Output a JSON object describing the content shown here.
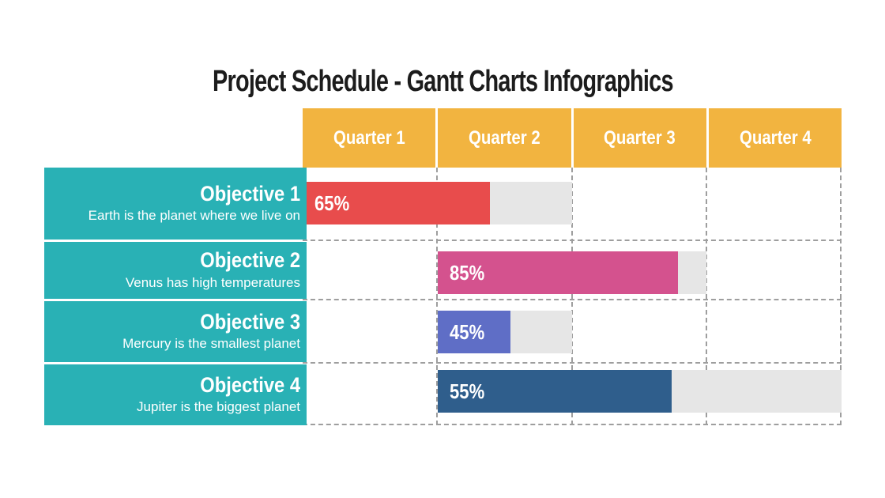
{
  "slide": {
    "title": "Project Schedule - Gantt Charts Infographics"
  },
  "colors": {
    "title_text": "#1c1c1c",
    "quarter_header_bg": "#f2b440",
    "objective_box_bg": "#29b1b5",
    "track_bg": "#e6e6e6",
    "grid_dash": "#9e9e9e"
  },
  "quarters": [
    {
      "label": "Quarter 1"
    },
    {
      "label": "Quarter 2"
    },
    {
      "label": "Quarter 3"
    },
    {
      "label": "Quarter 4"
    }
  ],
  "rows": [
    {
      "objective": "Objective 1",
      "description": "Earth is the planet where we live on",
      "percent": "65%",
      "bar_color": "#e84c4c"
    },
    {
      "objective": "Objective 2",
      "description": "Venus has high temperatures",
      "percent": "85%",
      "bar_color": "#d4528e"
    },
    {
      "objective": "Objective 3",
      "description": "Mercury is the smallest planet",
      "percent": "45%",
      "bar_color": "#5f6ec6"
    },
    {
      "objective": "Objective 4",
      "description": "Jupiter is the biggest planet",
      "percent": "55%",
      "bar_color": "#2f5e8c"
    }
  ],
  "chart_data": {
    "type": "bar",
    "orientation": "horizontal",
    "title": "Project Schedule - Gantt Charts Infographics",
    "categories": [
      "Objective 1",
      "Objective 2",
      "Objective 3",
      "Objective 4"
    ],
    "category_descriptions": [
      "Earth is the planet where we live on",
      "Venus has high temperatures",
      "Mercury is the smallest planet",
      "Jupiter is the biggest planet"
    ],
    "values": [
      65,
      85,
      45,
      55
    ],
    "value_labels": [
      "65%",
      "85%",
      "45%",
      "55%"
    ],
    "x_axis_columns": [
      "Quarter 1",
      "Quarter 2",
      "Quarter 3",
      "Quarter 4"
    ],
    "bar_track_quarters": [
      [
        "Quarter 1",
        "Quarter 2"
      ],
      [
        "Quarter 2",
        "Quarter 3"
      ],
      [
        "Quarter 2"
      ],
      [
        "Quarter 2",
        "Quarter 3",
        "Quarter 4"
      ]
    ],
    "bar_colors": [
      "#e84c4c",
      "#d4528e",
      "#5f6ec6",
      "#2f5e8c"
    ],
    "track_color": "#e6e6e6",
    "grid": "dashed",
    "legend": "none"
  }
}
